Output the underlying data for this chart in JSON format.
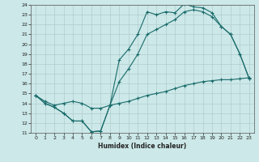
{
  "xlabel": "Humidex (Indice chaleur)",
  "xlim": [
    -0.5,
    23.5
  ],
  "ylim": [
    11,
    24
  ],
  "yticks": [
    11,
    12,
    13,
    14,
    15,
    16,
    17,
    18,
    19,
    20,
    21,
    22,
    23,
    24
  ],
  "xticks": [
    0,
    1,
    2,
    3,
    4,
    5,
    6,
    7,
    8,
    9,
    10,
    11,
    12,
    13,
    14,
    15,
    16,
    17,
    18,
    19,
    20,
    21,
    22,
    23
  ],
  "bg_color": "#cce8e8",
  "line_color": "#1a6b6b",
  "grid_color": "#b0cccc",
  "curve1_x": [
    0,
    1,
    2,
    3,
    4,
    5,
    6,
    7,
    8,
    9,
    10,
    11,
    12,
    13,
    14,
    15,
    16,
    17,
    18,
    19,
    20,
    21,
    22,
    23
  ],
  "curve1_y": [
    14.8,
    14.0,
    13.6,
    13.0,
    12.2,
    12.2,
    11.1,
    11.2,
    13.8,
    18.4,
    19.5,
    21.0,
    23.3,
    23.0,
    23.3,
    23.2,
    24.1,
    23.8,
    23.7,
    23.2,
    21.8,
    21.0,
    19.0,
    16.5
  ],
  "curve2_x": [
    0,
    1,
    2,
    3,
    4,
    5,
    6,
    7,
    8,
    9,
    10,
    11,
    12,
    13,
    14,
    15,
    16,
    17,
    18,
    19,
    20,
    21,
    22,
    23
  ],
  "curve2_y": [
    14.8,
    14.0,
    13.6,
    13.0,
    12.2,
    12.2,
    11.1,
    11.2,
    13.8,
    16.2,
    17.5,
    19.0,
    21.0,
    21.5,
    22.0,
    22.5,
    23.3,
    23.5,
    23.3,
    22.8,
    21.8,
    21.0,
    19.0,
    16.5
  ],
  "curve3_x": [
    0,
    1,
    2,
    3,
    4,
    5,
    6,
    7,
    8,
    9,
    10,
    11,
    12,
    13,
    14,
    15,
    16,
    17,
    18,
    19,
    20,
    21,
    22,
    23
  ],
  "curve3_y": [
    14.8,
    14.2,
    13.8,
    14.0,
    14.2,
    14.0,
    13.5,
    13.5,
    13.8,
    14.0,
    14.2,
    14.5,
    14.8,
    15.0,
    15.2,
    15.5,
    15.8,
    16.0,
    16.2,
    16.3,
    16.4,
    16.4,
    16.5,
    16.6
  ]
}
